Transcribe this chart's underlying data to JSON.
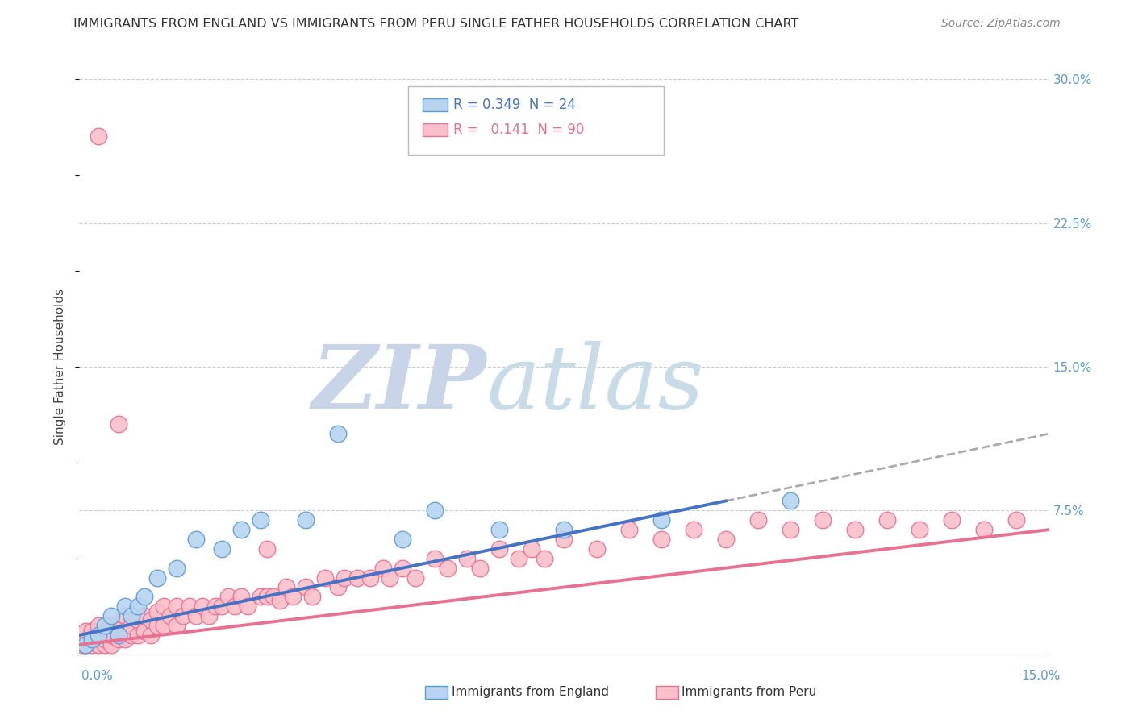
{
  "title": "IMMIGRANTS FROM ENGLAND VS IMMIGRANTS FROM PERU SINGLE FATHER HOUSEHOLDS CORRELATION CHART",
  "source": "Source: ZipAtlas.com",
  "ylabel": "Single Father Households",
  "ytick_labels": [
    "",
    "7.5%",
    "15.0%",
    "22.5%",
    "30.0%"
  ],
  "ytick_values": [
    0.0,
    0.075,
    0.15,
    0.225,
    0.3
  ],
  "xlim": [
    0.0,
    0.15
  ],
  "ylim": [
    0.0,
    0.3
  ],
  "england_R": 0.349,
  "england_N": 24,
  "peru_R": 0.141,
  "peru_N": 90,
  "england_color": "#b8d4f0",
  "england_edge": "#5b9bd5",
  "peru_color": "#f9c0cb",
  "peru_edge": "#e87090",
  "trend_england_color": "#4472c4",
  "trend_peru_color": "#e87090",
  "dashed_line_color": "#aaaaaa",
  "watermark_zip_color": "#c8d4e8",
  "watermark_atlas_color": "#c8dce8",
  "england_scatter_x": [
    0.001,
    0.002,
    0.003,
    0.004,
    0.005,
    0.006,
    0.007,
    0.008,
    0.009,
    0.01,
    0.012,
    0.015,
    0.018,
    0.022,
    0.025,
    0.028,
    0.035,
    0.04,
    0.05,
    0.055,
    0.065,
    0.075,
    0.09,
    0.11
  ],
  "england_scatter_y": [
    0.005,
    0.008,
    0.01,
    0.015,
    0.02,
    0.01,
    0.025,
    0.02,
    0.025,
    0.03,
    0.04,
    0.045,
    0.06,
    0.055,
    0.065,
    0.07,
    0.07,
    0.115,
    0.06,
    0.075,
    0.065,
    0.065,
    0.07,
    0.08
  ],
  "peru_scatter_x": [
    0.0005,
    0.001,
    0.001,
    0.001,
    0.002,
    0.002,
    0.002,
    0.003,
    0.003,
    0.003,
    0.003,
    0.004,
    0.004,
    0.004,
    0.005,
    0.005,
    0.005,
    0.006,
    0.006,
    0.007,
    0.007,
    0.007,
    0.008,
    0.008,
    0.009,
    0.009,
    0.01,
    0.01,
    0.011,
    0.011,
    0.012,
    0.012,
    0.013,
    0.013,
    0.014,
    0.015,
    0.015,
    0.016,
    0.017,
    0.018,
    0.019,
    0.02,
    0.021,
    0.022,
    0.023,
    0.024,
    0.025,
    0.026,
    0.028,
    0.029,
    0.03,
    0.031,
    0.032,
    0.033,
    0.035,
    0.036,
    0.038,
    0.04,
    0.041,
    0.043,
    0.045,
    0.047,
    0.048,
    0.05,
    0.052,
    0.055,
    0.057,
    0.06,
    0.062,
    0.065,
    0.068,
    0.07,
    0.072,
    0.075,
    0.08,
    0.085,
    0.09,
    0.095,
    0.1,
    0.105,
    0.11,
    0.115,
    0.12,
    0.125,
    0.13,
    0.135,
    0.14,
    0.145,
    0.029,
    0.006
  ],
  "peru_scatter_y": [
    0.005,
    0.005,
    0.008,
    0.012,
    0.005,
    0.008,
    0.012,
    0.005,
    0.01,
    0.015,
    0.27,
    0.005,
    0.008,
    0.012,
    0.005,
    0.01,
    0.015,
    0.008,
    0.013,
    0.008,
    0.012,
    0.02,
    0.01,
    0.015,
    0.01,
    0.018,
    0.012,
    0.02,
    0.01,
    0.018,
    0.015,
    0.022,
    0.015,
    0.025,
    0.02,
    0.015,
    0.025,
    0.02,
    0.025,
    0.02,
    0.025,
    0.02,
    0.025,
    0.025,
    0.03,
    0.025,
    0.03,
    0.025,
    0.03,
    0.03,
    0.03,
    0.028,
    0.035,
    0.03,
    0.035,
    0.03,
    0.04,
    0.035,
    0.04,
    0.04,
    0.04,
    0.045,
    0.04,
    0.045,
    0.04,
    0.05,
    0.045,
    0.05,
    0.045,
    0.055,
    0.05,
    0.055,
    0.05,
    0.06,
    0.055,
    0.065,
    0.06,
    0.065,
    0.06,
    0.07,
    0.065,
    0.07,
    0.065,
    0.07,
    0.065,
    0.07,
    0.065,
    0.07,
    0.055,
    0.12
  ]
}
